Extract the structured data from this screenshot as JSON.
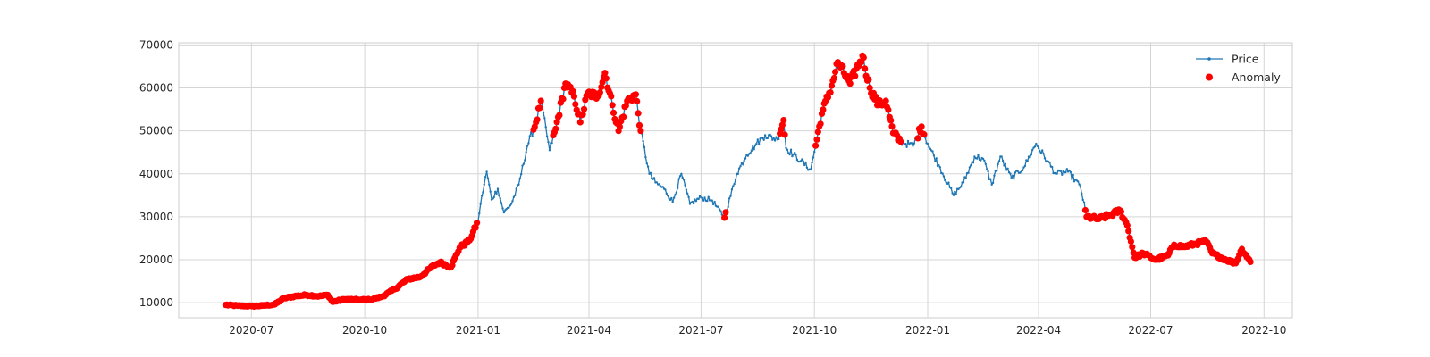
{
  "chart_data": {
    "type": "line",
    "title": "",
    "xlabel": "",
    "ylabel": "",
    "x_range": [
      "2020-05-03",
      "2022-10-24"
    ],
    "ylim": [
      6500,
      70500
    ],
    "grid": true,
    "legend_placement": "top-right",
    "x_ticks": [
      {
        "date": "2020-07-01",
        "label": "2020-07"
      },
      {
        "date": "2020-10-01",
        "label": "2020-10"
      },
      {
        "date": "2021-01-01",
        "label": "2021-01"
      },
      {
        "date": "2021-04-01",
        "label": "2021-04"
      },
      {
        "date": "2021-07-01",
        "label": "2021-07"
      },
      {
        "date": "2021-10-01",
        "label": "2021-10"
      },
      {
        "date": "2022-01-01",
        "label": "2022-01"
      },
      {
        "date": "2022-04-01",
        "label": "2022-04"
      },
      {
        "date": "2022-07-01",
        "label": "2022-07"
      },
      {
        "date": "2022-10-01",
        "label": "2022-10"
      }
    ],
    "y_ticks": [
      {
        "value": 10000,
        "label": "10000"
      },
      {
        "value": 20000,
        "label": "20000"
      },
      {
        "value": 30000,
        "label": "30000"
      },
      {
        "value": 40000,
        "label": "40000"
      },
      {
        "value": 50000,
        "label": "50000"
      },
      {
        "value": 60000,
        "label": "60000"
      },
      {
        "value": 70000,
        "label": "70000"
      }
    ],
    "series": [
      {
        "name": "Price",
        "color": "#1f77b4",
        "marker": "point",
        "points": [
          [
            "2020-06-10",
            9500
          ],
          [
            "2020-06-20",
            9300
          ],
          [
            "2020-07-01",
            9200
          ],
          [
            "2020-07-10",
            9300
          ],
          [
            "2020-07-20",
            9600
          ],
          [
            "2020-07-27",
            11000
          ],
          [
            "2020-08-05",
            11500
          ],
          [
            "2020-08-15",
            11800
          ],
          [
            "2020-08-25",
            11500
          ],
          [
            "2020-09-01",
            11800
          ],
          [
            "2020-09-05",
            10200
          ],
          [
            "2020-09-15",
            10800
          ],
          [
            "2020-09-25",
            10700
          ],
          [
            "2020-10-05",
            10700
          ],
          [
            "2020-10-15",
            11400
          ],
          [
            "2020-10-25",
            13100
          ],
          [
            "2020-11-05",
            15500
          ],
          [
            "2020-11-15",
            16000
          ],
          [
            "2020-11-25",
            18500
          ],
          [
            "2020-12-01",
            19400
          ],
          [
            "2020-12-10",
            18300
          ],
          [
            "2020-12-17",
            22800
          ],
          [
            "2020-12-25",
            24500
          ],
          [
            "2021-01-01",
            29000
          ],
          [
            "2021-01-03",
            33000
          ],
          [
            "2021-01-08",
            40500
          ],
          [
            "2021-01-12",
            34000
          ],
          [
            "2021-01-17",
            36500
          ],
          [
            "2021-01-22",
            31000
          ],
          [
            "2021-01-28",
            33000
          ],
          [
            "2021-02-03",
            37500
          ],
          [
            "2021-02-10",
            46500
          ],
          [
            "2021-02-17",
            52000
          ],
          [
            "2021-02-21",
            57000
          ],
          [
            "2021-02-28",
            45500
          ],
          [
            "2021-03-05",
            50500
          ],
          [
            "2021-03-13",
            61000
          ],
          [
            "2021-03-20",
            58000
          ],
          [
            "2021-03-25",
            52000
          ],
          [
            "2021-03-31",
            58800
          ],
          [
            "2021-04-08",
            58000
          ],
          [
            "2021-04-14",
            63500
          ],
          [
            "2021-04-20",
            56000
          ],
          [
            "2021-04-25",
            50000
          ],
          [
            "2021-05-02",
            57000
          ],
          [
            "2021-05-09",
            58500
          ],
          [
            "2021-05-13",
            50000
          ],
          [
            "2021-05-20",
            40000
          ],
          [
            "2021-05-25",
            38000
          ],
          [
            "2021-06-01",
            36500
          ],
          [
            "2021-06-08",
            33500
          ],
          [
            "2021-06-15",
            40000
          ],
          [
            "2021-06-22",
            33000
          ],
          [
            "2021-07-01",
            34500
          ],
          [
            "2021-07-10",
            33800
          ],
          [
            "2021-07-20",
            29800
          ],
          [
            "2021-07-30",
            40000
          ],
          [
            "2021-08-07",
            44500
          ],
          [
            "2021-08-15",
            47000
          ],
          [
            "2021-08-22",
            49000
          ],
          [
            "2021-09-01",
            48000
          ],
          [
            "2021-09-06",
            52500
          ],
          [
            "2021-09-08",
            46000
          ],
          [
            "2021-09-20",
            43000
          ],
          [
            "2021-09-28",
            41000
          ],
          [
            "2021-10-03",
            48000
          ],
          [
            "2021-10-07",
            54000
          ],
          [
            "2021-10-15",
            60500
          ],
          [
            "2021-10-20",
            66000
          ],
          [
            "2021-10-30",
            61000
          ],
          [
            "2021-11-09",
            67500
          ],
          [
            "2021-11-15",
            60000
          ],
          [
            "2021-11-22",
            56000
          ],
          [
            "2021-11-28",
            57000
          ],
          [
            "2021-12-04",
            49500
          ],
          [
            "2021-12-10",
            47500
          ],
          [
            "2021-12-20",
            46500
          ],
          [
            "2021-12-27",
            51000
          ],
          [
            "2022-01-01",
            47000
          ],
          [
            "2022-01-10",
            42000
          ],
          [
            "2022-01-22",
            35000
          ],
          [
            "2022-01-30",
            38000
          ],
          [
            "2022-02-08",
            44000
          ],
          [
            "2022-02-15",
            43500
          ],
          [
            "2022-02-22",
            37500
          ],
          [
            "2022-03-01",
            44000
          ],
          [
            "2022-03-10",
            39000
          ],
          [
            "2022-03-20",
            41500
          ],
          [
            "2022-03-30",
            47000
          ],
          [
            "2022-04-08",
            43000
          ],
          [
            "2022-04-15",
            40000
          ],
          [
            "2022-04-25",
            40500
          ],
          [
            "2022-05-05",
            37000
          ],
          [
            "2022-05-10",
            30000
          ],
          [
            "2022-05-20",
            29500
          ],
          [
            "2022-05-30",
            30500
          ],
          [
            "2022-06-06",
            31500
          ],
          [
            "2022-06-12",
            28000
          ],
          [
            "2022-06-18",
            20500
          ],
          [
            "2022-06-25",
            21500
          ],
          [
            "2022-07-05",
            20000
          ],
          [
            "2022-07-15",
            21000
          ],
          [
            "2022-07-20",
            23500
          ],
          [
            "2022-07-28",
            23000
          ],
          [
            "2022-08-10",
            24000
          ],
          [
            "2022-08-15",
            24300
          ],
          [
            "2022-08-20",
            21500
          ],
          [
            "2022-08-31",
            20000
          ],
          [
            "2022-09-08",
            19200
          ],
          [
            "2022-09-13",
            22500
          ],
          [
            "2022-09-20",
            19500
          ]
        ]
      },
      {
        "name": "Anomaly",
        "color": "#ff0000",
        "marker": "circle",
        "segments": [
          [
            "2020-06-10",
            "2020-12-31"
          ],
          [
            "2021-02-15",
            "2021-02-21"
          ],
          [
            "2021-03-03",
            "2021-05-13"
          ],
          [
            "2021-07-20",
            "2021-07-21"
          ],
          [
            "2021-09-03",
            "2021-09-07"
          ],
          [
            "2021-10-02",
            "2021-12-01"
          ],
          [
            "2021-12-02",
            "2021-12-10"
          ],
          [
            "2021-12-24",
            "2021-12-29"
          ],
          [
            "2022-05-09",
            "2022-09-20"
          ]
        ]
      }
    ]
  }
}
